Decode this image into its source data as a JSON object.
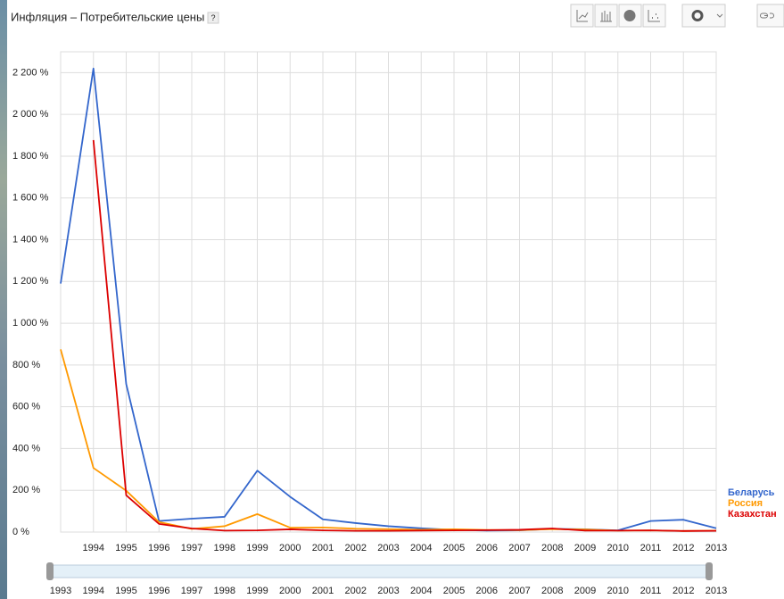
{
  "help_label": "?",
  "chart_data": {
    "type": "line",
    "title": "Инфляция – Потребительские цены",
    "x": [
      1993,
      1994,
      1995,
      1996,
      1997,
      1998,
      1999,
      2000,
      2001,
      2002,
      2003,
      2004,
      2005,
      2006,
      2007,
      2008,
      2009,
      2010,
      2011,
      2012,
      2013
    ],
    "series": [
      {
        "name": "Беларусь",
        "color": "#3366cc",
        "values": [
          1190,
          2220,
          709,
          53,
          64,
          73,
          294,
          169,
          61,
          43,
          28,
          18,
          10,
          7,
          8,
          15,
          13,
          8,
          53,
          59,
          18
        ]
      },
      {
        "name": "Россия",
        "color": "#ff9900",
        "values": [
          875,
          307,
          198,
          48,
          15,
          28,
          86,
          21,
          22,
          16,
          14,
          11,
          13,
          10,
          9,
          14,
          12,
          7,
          8,
          5,
          7
        ]
      },
      {
        "name": "Казахстан",
        "color": "#dc0000",
        "values": [
          null,
          1877,
          176,
          39,
          17,
          7,
          8,
          13,
          8,
          6,
          6,
          7,
          8,
          9,
          11,
          17,
          7,
          7,
          8,
          5,
          6
        ]
      }
    ],
    "xlim": [
      1993,
      2013
    ],
    "xticks": [
      1994,
      1995,
      1996,
      1997,
      1998,
      1999,
      2000,
      2001,
      2002,
      2003,
      2004,
      2005,
      2006,
      2007,
      2008,
      2009,
      2010,
      2011,
      2012,
      2013
    ],
    "ylim": [
      0,
      2300
    ],
    "yticks": [
      {
        "value": 0,
        "label": "0 %"
      },
      {
        "value": 200,
        "label": "200 %"
      },
      {
        "value": 400,
        "label": "400 %"
      },
      {
        "value": 600,
        "label": "600 %"
      },
      {
        "value": 800,
        "label": "800 %"
      },
      {
        "value": 1000,
        "label": "1 000 %"
      },
      {
        "value": 1200,
        "label": "1 200 %"
      },
      {
        "value": 1400,
        "label": "1 400 %"
      },
      {
        "value": 1600,
        "label": "1 600 %"
      },
      {
        "value": 1800,
        "label": "1 800 %"
      },
      {
        "value": 2000,
        "label": "2 000 %"
      },
      {
        "value": 2200,
        "label": "2 200 %"
      }
    ],
    "grid": true,
    "legend": "right"
  }
}
